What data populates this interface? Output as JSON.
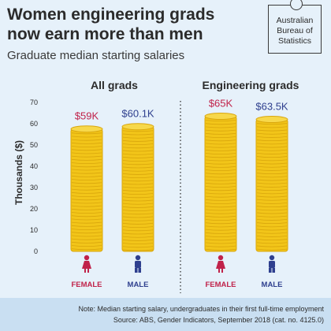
{
  "header": {
    "title_line1": "Women engineering grads",
    "title_line2": "now earn more than men",
    "subtitle": "Graduate median starting salaries"
  },
  "logo": {
    "line1": "Australian",
    "line2": "Bureau of",
    "line3": "Statistics"
  },
  "footnote": {
    "note": "Note: Median starting salary, undergraduates in their first full-time employment",
    "source": "Source: ABS, Gender Indicators, September 2018 (cat. no. 4125.0)"
  },
  "colors": {
    "background": "#e6f1fa",
    "coin": "#f2c519",
    "coin_edge": "#d9a60c",
    "female": "#c0224a",
    "male": "#2e3f8e",
    "text": "#2b2b2b"
  },
  "chart_data": {
    "type": "bar",
    "ylabel": "Thousands ($)",
    "ylim": [
      0,
      70
    ],
    "yticks": [
      0,
      10,
      20,
      30,
      40,
      50,
      60,
      70
    ],
    "grid": false,
    "groups": [
      {
        "name": "All grads",
        "bars": [
          {
            "category": "FEMALE",
            "value": 59,
            "label": "$59K",
            "icon": "female-icon",
            "color_key": "female"
          },
          {
            "category": "MALE",
            "value": 60.1,
            "label": "$60.1K",
            "icon": "male-icon",
            "color_key": "male"
          }
        ]
      },
      {
        "name": "Engineering grads",
        "bars": [
          {
            "category": "FEMALE",
            "value": 65,
            "label": "$65K",
            "icon": "female-icon",
            "color_key": "female"
          },
          {
            "category": "MALE",
            "value": 63.5,
            "label": "$63.5K",
            "icon": "male-icon",
            "color_key": "male"
          }
        ]
      }
    ]
  }
}
